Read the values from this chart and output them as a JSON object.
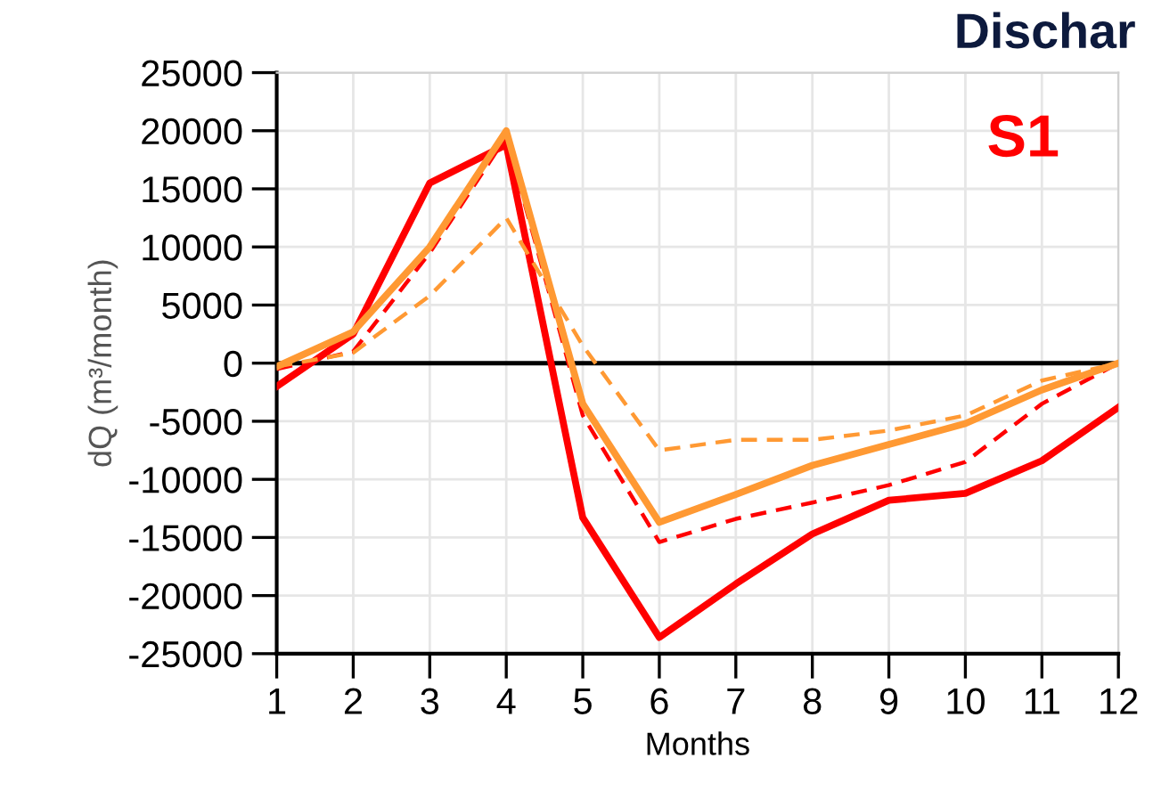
{
  "chart_data": {
    "type": "line",
    "title": "Dischar",
    "xlabel": "Months",
    "ylabel": "dQ (m³/month)",
    "annotations": [
      "S1"
    ],
    "x": [
      1,
      2,
      3,
      4,
      5,
      6,
      7,
      8,
      9,
      10,
      11,
      12
    ],
    "series": [
      {
        "color": "#ff0000",
        "line_style": "solid",
        "values": [
          -2000,
          2500,
          15500,
          18800,
          -13300,
          -23600,
          -19000,
          -14700,
          -11800,
          -11200,
          -8400,
          -3800
        ]
      },
      {
        "color": "#ff0000",
        "line_style": "dashed",
        "values": [
          -500,
          1000,
          9500,
          19500,
          -4500,
          -15400,
          -13400,
          -12000,
          -10500,
          -8500,
          -3500,
          0
        ]
      },
      {
        "color": "#ff9933",
        "line_style": "dashed",
        "values": [
          -300,
          900,
          5800,
          12500,
          1500,
          -7500,
          -6600,
          -6600,
          -5800,
          -4500,
          -1500,
          0
        ]
      },
      {
        "color": "#ff9933",
        "line_style": "solid",
        "values": [
          -300,
          2700,
          10000,
          20000,
          -3500,
          -13700,
          -11300,
          -8800,
          -7000,
          -5200,
          -2300,
          0
        ]
      }
    ],
    "xlim": [
      1,
      12
    ],
    "xticks": [
      1,
      2,
      3,
      4,
      5,
      6,
      7,
      8,
      9,
      10,
      11,
      12
    ],
    "ylim": [
      -25000,
      25000
    ],
    "yticks": [
      -25000,
      -20000,
      -15000,
      -10000,
      -5000,
      0,
      5000,
      10000,
      15000,
      20000,
      25000
    ],
    "ref_lines": [
      {
        "axis": "y",
        "value": 0,
        "color": "#000000",
        "line_style": "solid"
      }
    ],
    "grid": true,
    "legend": false,
    "marker": "none"
  }
}
